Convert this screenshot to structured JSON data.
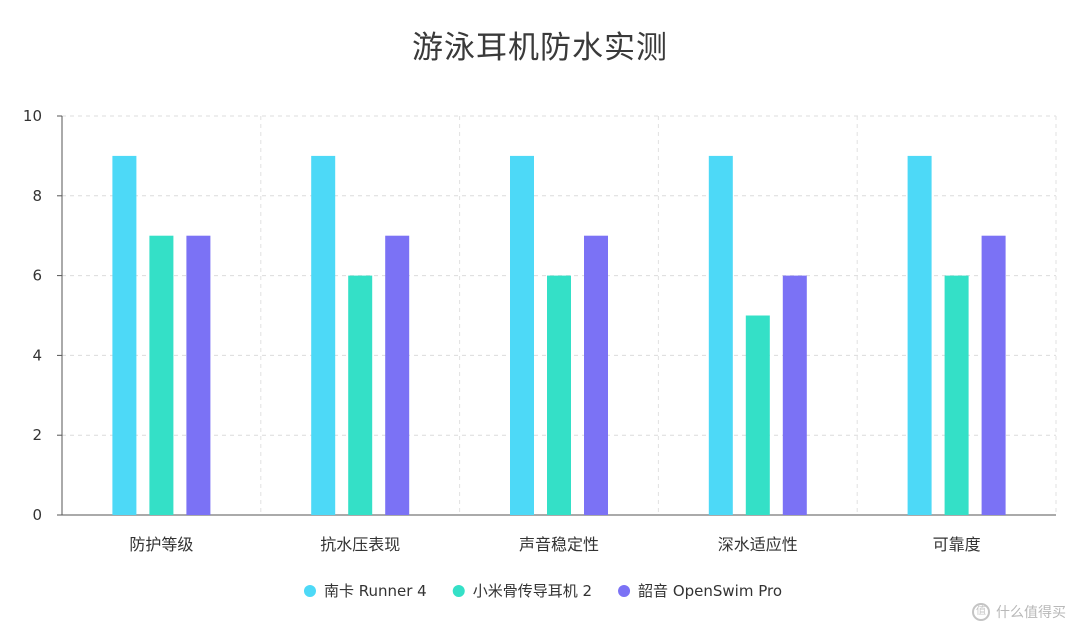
{
  "chart_data": {
    "type": "bar",
    "title": "游泳耳机防水实测",
    "categories": [
      "防护等级",
      "抗水压表现",
      "声音稳定性",
      "深水适应性",
      "可靠度"
    ],
    "series": [
      {
        "name": "南卡 Runner 4",
        "color": "#4dd9f7",
        "values": [
          9,
          9,
          9,
          9,
          9
        ]
      },
      {
        "name": "小米骨传导耳机 2",
        "color": "#34e0c7",
        "values": [
          7,
          6,
          6,
          5,
          6
        ]
      },
      {
        "name": "韶音 OpenSwim Pro",
        "color": "#7b72f5",
        "values": [
          7,
          7,
          7,
          6,
          7
        ]
      }
    ],
    "ylim": [
      0,
      10
    ],
    "yticks": [
      0,
      2,
      4,
      6,
      8,
      10
    ],
    "grid": true,
    "legend_position": "bottom-center",
    "xlabel": "",
    "ylabel": ""
  },
  "watermark": {
    "icon_text": "值",
    "text": "什么值得买"
  }
}
